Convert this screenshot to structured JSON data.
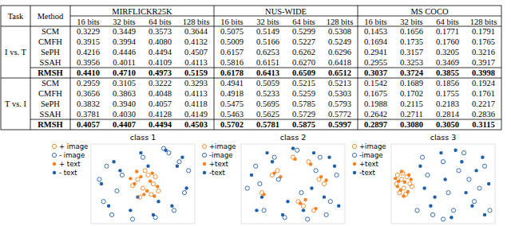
{
  "table": {
    "columns": [
      "Task",
      "Method"
    ],
    "datasets": [
      "MIRFLICKR25K",
      "NUS-WIDE",
      "MS COCO"
    ],
    "bits": [
      "16 bits",
      "32 bits",
      "64 bits",
      "128 bits"
    ],
    "groups": [
      {
        "task": "I vs. T",
        "rows": [
          {
            "method": "SCM",
            "values": [
              "0.3229",
              "0.3449",
              "0.3573",
              "0.3644",
              "0.5075",
              "0.5149",
              "0.5299",
              "0.5308",
              "0.1453",
              "0.1656",
              "0.1771",
              "0.1791"
            ]
          },
          {
            "method": "CMFH",
            "values": [
              "0.3915",
              "0.3994",
              "0.4080",
              "0.4132",
              "0.5009",
              "0.5166",
              "0.5227",
              "0.5249",
              "0.1694",
              "0.1735",
              "0.1760",
              "0.1765"
            ]
          },
          {
            "method": "SePH",
            "values": [
              "0.4216",
              "0.4446",
              "0.4494",
              "0.4507",
              "0.6157",
              "0.6253",
              "0.6262",
              "0.6296",
              "0.2941",
              "0.3157",
              "0.3205",
              "0.3216"
            ]
          },
          {
            "method": "SSAH",
            "values": [
              "0.3956",
              "0.4011",
              "0.4109",
              "0.4113",
              "0.5816",
              "0.6151",
              "0.6270",
              "0.6418",
              "0.2955",
              "0.3253",
              "0.3469",
              "0.3917"
            ]
          },
          {
            "method": "RMSH",
            "values": [
              "0.4410",
              "0.4710",
              "0.4973",
              "0.5159",
              "0.6178",
              "0.6413",
              "0.6509",
              "0.6512",
              "0.3037",
              "0.3724",
              "0.3855",
              "0.3998"
            ]
          }
        ]
      },
      {
        "task": "T vs. I",
        "rows": [
          {
            "method": "SCM",
            "values": [
              "0.2959",
              "0.3105",
              "0.3222",
              "0.3293",
              "0.4941",
              "0.5059",
              "0.5215",
              "0.5213",
              "0.1542",
              "0.1689",
              "0.1856",
              "0.1924"
            ]
          },
          {
            "method": "CMFH",
            "values": [
              "0.3656",
              "0.3863",
              "0.4048",
              "0.4113",
              "0.4918",
              "0.5233",
              "0.5259",
              "0.5303",
              "0.1675",
              "0.1702",
              "0.1755",
              "0.1761"
            ]
          },
          {
            "method": "SePH",
            "values": [
              "0.3832",
              "0.3940",
              "0.4057",
              "0.4118",
              "0.5475",
              "0.5695",
              "0.5785",
              "0.5793",
              "0.1988",
              "0.2115",
              "0.2183",
              "0.2217"
            ]
          },
          {
            "method": "SSAH",
            "values": [
              "0.3781",
              "0.4030",
              "0.4128",
              "0.4149",
              "0.5463",
              "0.5625",
              "0.5729",
              "0.5772",
              "0.2642",
              "0.2711",
              "0.2814",
              "0.2836"
            ]
          },
          {
            "method": "RMSH",
            "values": [
              "0.4057",
              "0.4407",
              "0.4494",
              "0.4503",
              "0.5702",
              "0.5781",
              "0.5875",
              "0.5997",
              "0.2897",
              "0.3080",
              "0.3050",
              "0.3115"
            ]
          }
        ]
      }
    ]
  },
  "chart_data": [
    {
      "type": "scatter",
      "title": "class 1",
      "xlim": [
        -50,
        50
      ],
      "ylim": [
        -45,
        45
      ],
      "tick_labels": false,
      "legend": "left",
      "series": [
        {
          "name": "+ image",
          "color": "#f5821f",
          "marker": "circle",
          "x": [
            -5,
            0,
            5,
            10,
            15,
            -10,
            2,
            8,
            -3,
            12
          ],
          "values": [
            5,
            -5,
            10,
            0,
            -8,
            -2,
            15,
            -12,
            -15,
            8
          ]
        },
        {
          "name": "- image",
          "color": "#1f5fa8",
          "marker": "circle",
          "x": [
            -42,
            -38,
            -30,
            -20,
            -10,
            0,
            12,
            25,
            35,
            40,
            44,
            -35,
            -25,
            30,
            20
          ],
          "values": [
            5,
            -20,
            -35,
            10,
            -40,
            30,
            -38,
            35,
            25,
            -10,
            15,
            20,
            -8,
            -30,
            40
          ]
        },
        {
          "name": "+ text",
          "color": "#f5821f",
          "marker": "point",
          "x": [
            -8,
            -2,
            4,
            9,
            14,
            -12,
            1,
            7,
            11,
            -6
          ],
          "values": [
            0,
            8,
            -8,
            12,
            -3,
            6,
            -12,
            3,
            -14,
            14
          ]
        },
        {
          "name": "- text",
          "color": "#1f5fa8",
          "marker": "point",
          "x": [
            -40,
            -33,
            -22,
            -12,
            -2,
            10,
            22,
            33,
            42,
            38,
            -28,
            15,
            28,
            -5,
            5
          ],
          "values": [
            0,
            -25,
            15,
            -30,
            35,
            -35,
            38,
            20,
            -5,
            30,
            25,
            -20,
            -25,
            -15,
            20
          ]
        }
      ]
    },
    {
      "type": "scatter",
      "title": "class 2",
      "xlim": [
        -50,
        50
      ],
      "ylim": [
        -45,
        45
      ],
      "tick_labels": false,
      "legend": "left",
      "series": [
        {
          "name": "+image",
          "color": "#f5821f",
          "marker": "circle",
          "x": [
            -20,
            -15,
            5,
            10,
            25,
            30,
            -30,
            0,
            15,
            20
          ],
          "values": [
            10,
            15,
            -20,
            -25,
            5,
            0,
            -10,
            30,
            25,
            -30
          ]
        },
        {
          "name": "-image",
          "color": "#1f5fa8",
          "marker": "circle",
          "x": [
            -44,
            -36,
            -28,
            -18,
            -8,
            4,
            14,
            26,
            36,
            42,
            -32,
            22,
            -14,
            32,
            8
          ],
          "values": [
            -5,
            20,
            -30,
            30,
            -38,
            38,
            -40,
            30,
            -20,
            10,
            0,
            15,
            5,
            -35,
            -10
          ]
        },
        {
          "name": "+text",
          "color": "#f5821f",
          "marker": "point",
          "x": [
            -18,
            -12,
            7,
            12,
            27,
            -28,
            2,
            17,
            22,
            32
          ],
          "values": [
            12,
            8,
            -22,
            -18,
            8,
            -12,
            28,
            22,
            -28,
            4
          ]
        },
        {
          "name": "-text",
          "color": "#1f5fa8",
          "marker": "point",
          "x": [
            -40,
            -30,
            -20,
            -10,
            0,
            10,
            20,
            30,
            40,
            -35,
            -25,
            -5,
            18,
            35,
            44
          ],
          "values": [
            10,
            -15,
            25,
            -35,
            40,
            -30,
            35,
            -15,
            20,
            -30,
            35,
            -20,
            -5,
            30,
            -25
          ]
        }
      ]
    },
    {
      "type": "scatter",
      "title": "class 3",
      "xlim": [
        -50,
        50
      ],
      "ylim": [
        -45,
        45
      ],
      "tick_labels": false,
      "legend": "left",
      "series": [
        {
          "name": "+image",
          "color": "#f5821f",
          "marker": "circle",
          "x": [
            -45,
            -40,
            -38,
            -35,
            -42,
            -32,
            -44,
            -36,
            -39,
            -30
          ],
          "values": [
            0,
            5,
            -5,
            8,
            -10,
            0,
            10,
            -12,
            12,
            -3
          ]
        },
        {
          "name": "-image",
          "color": "#1f5fa8",
          "marker": "circle",
          "x": [
            -20,
            -10,
            0,
            10,
            20,
            30,
            40,
            -15,
            5,
            25,
            35,
            45,
            -25,
            15,
            0
          ],
          "values": [
            30,
            -35,
            25,
            -30,
            35,
            -20,
            20,
            10,
            -10,
            5,
            -5,
            -30,
            -30,
            15,
            -40
          ]
        },
        {
          "name": "+text",
          "color": "#f5821f",
          "marker": "point",
          "x": [
            -43,
            -41,
            -37,
            -34,
            -46,
            -33,
            -40,
            -31,
            -38,
            -44
          ],
          "values": [
            3,
            -7,
            2,
            -9,
            6,
            10,
            14,
            5,
            -14,
            -3
          ]
        },
        {
          "name": "-text",
          "color": "#1f5fa8",
          "marker": "point",
          "x": [
            -22,
            -12,
            -2,
            8,
            18,
            28,
            38,
            44,
            -18,
            2,
            22,
            32,
            12,
            -8,
            40
          ],
          "values": [
            20,
            -25,
            35,
            -38,
            25,
            -25,
            30,
            0,
            -5,
            5,
            -10,
            15,
            38,
            -15,
            -35
          ]
        }
      ]
    }
  ]
}
